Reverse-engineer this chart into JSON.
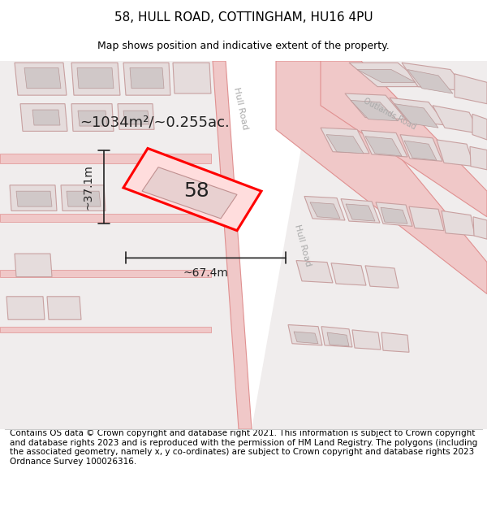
{
  "title": "58, HULL ROAD, COTTINGHAM, HU16 4PU",
  "subtitle": "Map shows position and indicative extent of the property.",
  "footnote": "Contains OS data © Crown copyright and database right 2021. This information is subject to Crown copyright and database rights 2023 and is reproduced with the permission of HM Land Registry. The polygons (including the associated geometry, namely x, y co-ordinates) are subject to Crown copyright and database rights 2023 Ordnance Survey 100026316.",
  "area_label": "~1034m²/~0.255ac.",
  "width_label": "~67.4m",
  "height_label": "~37.1m",
  "plot_number": "58",
  "road_color": "#f0c8c8",
  "road_stroke": "#e09090",
  "bfill": "#e5dcdc",
  "bstroke": "#c8a0a0",
  "subfill": "#d0c8c8",
  "substroke": "#b89898",
  "highlight_fill": "#ffdddd",
  "highlight_stroke": "#ff0000",
  "title_fontsize": 11,
  "subtitle_fontsize": 9,
  "footnote_fontsize": 7.5,
  "road_label_color": "#aaaaaa"
}
